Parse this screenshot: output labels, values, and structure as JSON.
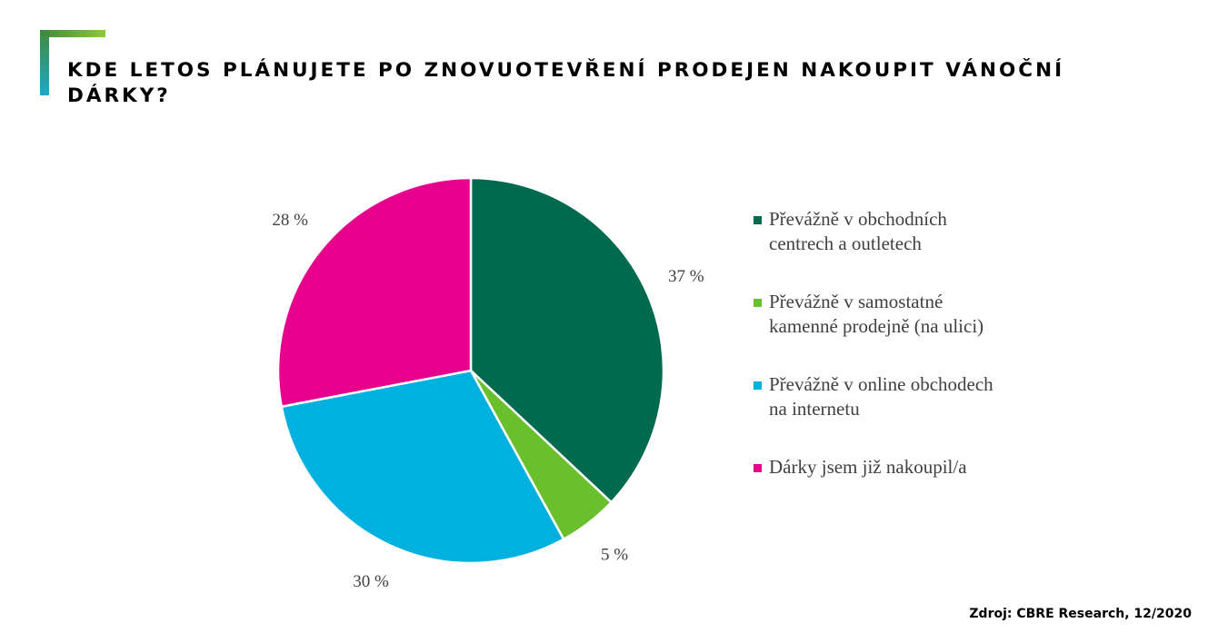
{
  "title": "KDE LETOS PLÁNUJETE PO ZNOVUOTEVŘENÍ PRODEJEN NAKOUPIT VÁNOČNÍ DÁRKY?",
  "source": "Zdroj: CBRE Research, 12/2020",
  "colors": {
    "accent_green_light": "#8dc63f",
    "accent_green_dark": "#3f8a3a",
    "accent_teal": "#1fa7c9"
  },
  "chart_data": {
    "type": "pie",
    "title": "KDE LETOS PLÁNUJETE PO ZNOVUOTEVŘENÍ PRODEJEN NAKOUPIT VÁNOČNÍ DÁRKY?",
    "categories": [
      "Převážně v obchodních centrech a outletech",
      "Převážně v samostatné kamenné prodejně (na ulici)",
      "Převážně v online obchodech na internetu",
      "Dárky jsem již nakoupil/a"
    ],
    "values": [
      37,
      5,
      30,
      28
    ],
    "labels": [
      "37 %",
      "5 %",
      "30 %",
      "28 %"
    ],
    "colors": [
      "#006a4e",
      "#6abf2c",
      "#00b0de",
      "#e6008c"
    ],
    "start": "12 o'clock, clockwise",
    "legend_position": "right"
  }
}
